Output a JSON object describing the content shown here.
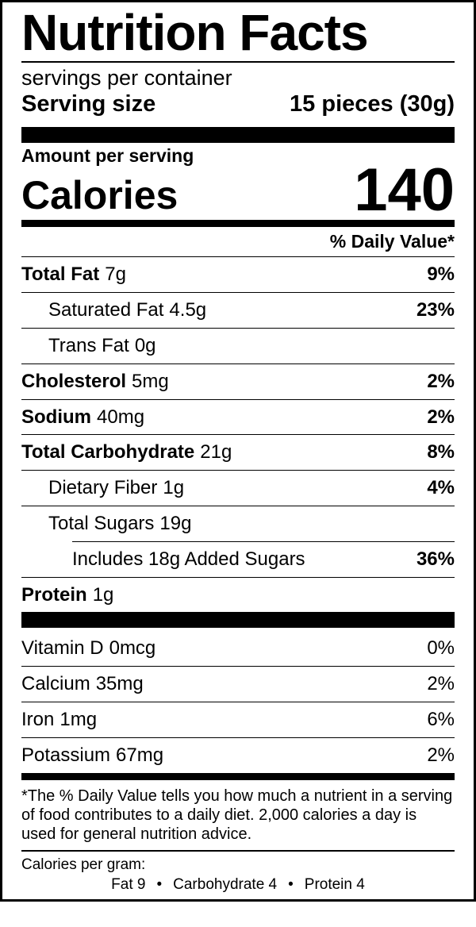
{
  "label": {
    "title": "Nutrition Facts",
    "servings_per_container": "servings per container",
    "serving_size_label": "Serving size",
    "serving_size_value": "15 pieces (30g)",
    "amount_per_serving": "Amount per serving",
    "calories_label": "Calories",
    "calories_value": "140",
    "daily_value_header": "% Daily Value*",
    "nutrients": [
      {
        "name": "Total Fat",
        "amount": "7g",
        "dv": "9%"
      },
      {
        "name": "Saturated Fat",
        "amount": "4.5g",
        "dv": "23%"
      },
      {
        "name": "Trans Fat",
        "amount": "0g",
        "dv": ""
      },
      {
        "name": "Cholesterol",
        "amount": "5mg",
        "dv": "2%"
      },
      {
        "name": "Sodium",
        "amount": "40mg",
        "dv": "2%"
      },
      {
        "name": "Total Carbohydrate",
        "amount": "21g",
        "dv": "8%"
      },
      {
        "name": "Dietary Fiber",
        "amount": "1g",
        "dv": "4%"
      },
      {
        "name": "Total Sugars",
        "amount": "19g",
        "dv": ""
      },
      {
        "name": "Includes 18g Added Sugars",
        "amount": "",
        "dv": "36%"
      },
      {
        "name": "Protein",
        "amount": "1g",
        "dv": ""
      }
    ],
    "vitamins": [
      {
        "name": "Vitamin D",
        "amount": "0mcg",
        "dv": "0%"
      },
      {
        "name": "Calcium",
        "amount": "35mg",
        "dv": "2%"
      },
      {
        "name": "Iron",
        "amount": "1mg",
        "dv": "6%"
      },
      {
        "name": "Potassium",
        "amount": "67mg",
        "dv": "2%"
      }
    ],
    "footnote": "*The % Daily Value tells you how much a nutrient in a serving of food contributes to a daily diet. 2,000 calories a day is used for general nutrition advice.",
    "calories_per_gram": {
      "label": "Calories per gram:",
      "fat": "Fat 9",
      "carbohydrate": "Carbohydrate 4",
      "protein": "Protein 4",
      "bullet": "•"
    }
  },
  "colors": {
    "ink": "#000000",
    "background": "#ffffff"
  }
}
